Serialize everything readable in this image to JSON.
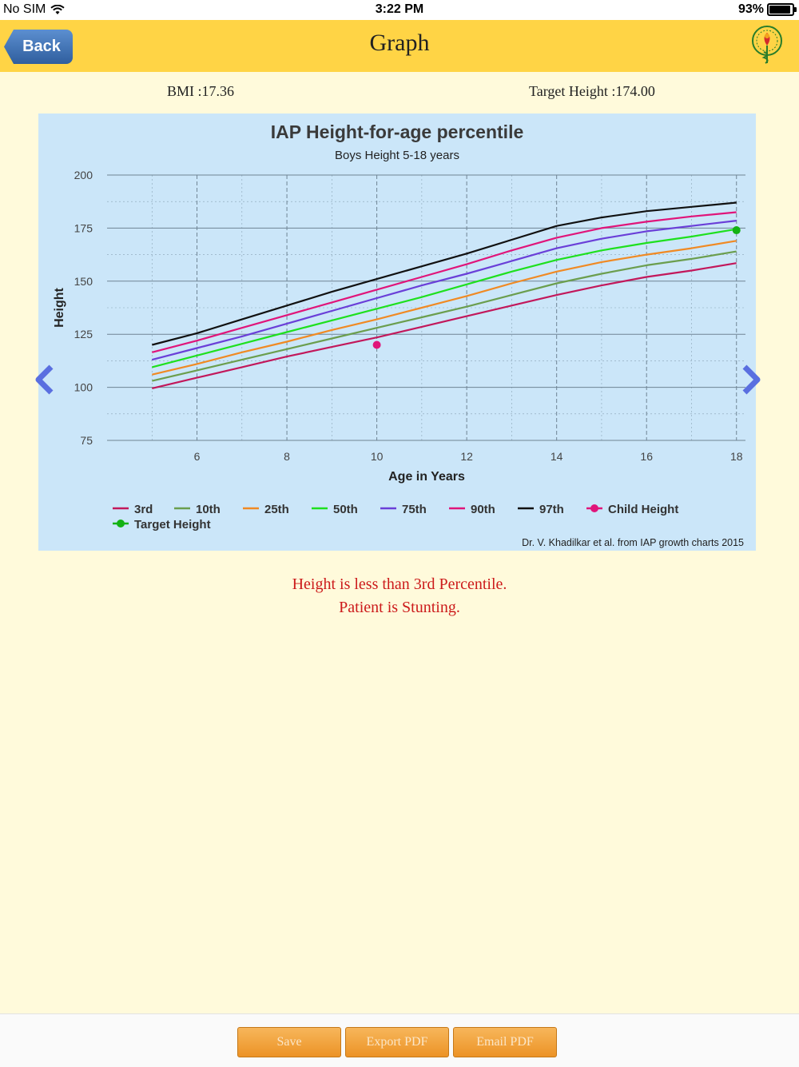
{
  "status_bar": {
    "carrier": "No SIM",
    "time": "3:22 PM",
    "battery": "93%"
  },
  "nav": {
    "back_label": "Back",
    "title": "Graph"
  },
  "stats": {
    "bmi": "BMI :17.36",
    "target_height": "Target Height :174.00"
  },
  "chart_data": {
    "type": "line",
    "title": "IAP Height-for-age percentile",
    "subtitle": "Boys Height 5-18 years",
    "xlabel": "Age in Years",
    "ylabel": "Height",
    "xlim": [
      4.0,
      18.2
    ],
    "ylim": [
      75,
      200
    ],
    "xticks": [
      6,
      8,
      10,
      12,
      14,
      16,
      18
    ],
    "yticks": [
      75,
      100,
      125,
      150,
      175,
      200
    ],
    "grid": true,
    "legend_position": "bottom",
    "x": [
      5,
      6,
      7,
      8,
      9,
      10,
      11,
      12,
      13,
      14,
      15,
      16,
      17,
      18
    ],
    "series": [
      {
        "name": "3rd",
        "color": "#c2185b",
        "values": [
          99.5,
          104.5,
          109.5,
          114.5,
          119,
          123.5,
          128.5,
          133.5,
          138.5,
          143.5,
          148,
          152,
          155,
          158.5
        ]
      },
      {
        "name": "10th",
        "color": "#6b9e4e",
        "values": [
          103,
          108,
          113,
          118,
          123,
          128,
          133,
          138,
          143.5,
          149,
          153.5,
          157.5,
          160.5,
          164
        ]
      },
      {
        "name": "25th",
        "color": "#f08a24",
        "values": [
          106,
          111,
          116.5,
          121.5,
          127,
          132,
          137.5,
          143,
          149,
          154.5,
          159,
          162.5,
          165.5,
          169
        ]
      },
      {
        "name": "50th",
        "color": "#1ee01e",
        "values": [
          109.5,
          115,
          120.5,
          126,
          131.5,
          137,
          142.5,
          148.5,
          154.5,
          160,
          164.5,
          168,
          171,
          174.5
        ]
      },
      {
        "name": "75th",
        "color": "#6a3fd8",
        "values": [
          113,
          118.5,
          124,
          130,
          136,
          142,
          148,
          153.5,
          159.5,
          165.5,
          170,
          173.5,
          176,
          178.5
        ]
      },
      {
        "name": "90th",
        "color": "#e0157a",
        "values": [
          116.5,
          122,
          128,
          134,
          140,
          146,
          152,
          158,
          164.5,
          170.5,
          175,
          178,
          180.5,
          182.5
        ]
      },
      {
        "name": "97th",
        "color": "#111111",
        "values": [
          120,
          125.5,
          132,
          138.5,
          145,
          151,
          157,
          163,
          169.5,
          176,
          180,
          183,
          185,
          187
        ]
      }
    ],
    "points": [
      {
        "name": "Child Height",
        "color": "#e0157a",
        "x": 10,
        "y": 120
      },
      {
        "name": "Target Height",
        "color": "#13b213",
        "x": 18,
        "y": 174
      }
    ],
    "credit": "Dr. V. Khadilkar et al. from IAP growth charts 2015"
  },
  "message": {
    "line1": "Height is less than 3rd Percentile.",
    "line2": "Patient is Stunting."
  },
  "footer": {
    "save": "Save",
    "export": "Export PDF",
    "email": "Email PDF"
  },
  "colors": {
    "nav_bg": "#ffd445",
    "page_bg": "#fffadb",
    "chart_bg": "#cbe6f9",
    "alert": "#cc1b1b",
    "button": "#ec9326",
    "arrow": "#5a6fe0"
  }
}
